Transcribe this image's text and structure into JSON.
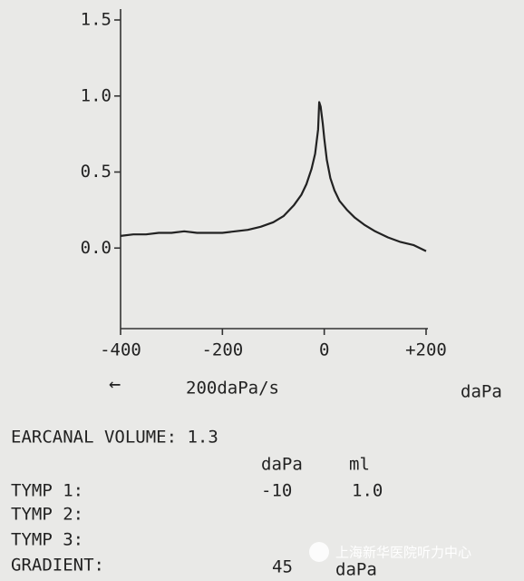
{
  "chart_data": {
    "type": "line",
    "x": [
      -400,
      -375,
      -350,
      -325,
      -300,
      -275,
      -250,
      -225,
      -200,
      -175,
      -150,
      -125,
      -100,
      -80,
      -60,
      -45,
      -35,
      -25,
      -18,
      -12,
      -10,
      -7,
      -3,
      0,
      5,
      12,
      20,
      30,
      45,
      60,
      80,
      100,
      125,
      150,
      175,
      200
    ],
    "values": [
      0.08,
      0.09,
      0.09,
      0.1,
      0.1,
      0.11,
      0.1,
      0.1,
      0.1,
      0.11,
      0.12,
      0.14,
      0.17,
      0.21,
      0.28,
      0.35,
      0.42,
      0.52,
      0.62,
      0.78,
      0.96,
      0.93,
      0.82,
      0.72,
      0.58,
      0.46,
      0.38,
      0.31,
      0.25,
      0.2,
      0.15,
      0.11,
      0.07,
      0.04,
      0.02,
      -0.02
    ],
    "color": "#222222",
    "xlim": [
      -400,
      200
    ],
    "xticks": [
      -400,
      -200,
      0,
      {
        "value": 200,
        "label": "+200"
      }
    ],
    "ylim": [
      -0.5,
      1.5
    ],
    "yticks": [
      1.5,
      {
        "value": 1,
        "label": "1.0"
      },
      0.5,
      {
        "value": 0,
        "label": "0.0"
      }
    ],
    "xlabel": "daPa",
    "annotations": [
      "←",
      "200daPa/s"
    ]
  },
  "report": {
    "volume": "EARCANAL VOLUME: 1.3",
    "columns": [
      "daPa",
      "ml"
    ],
    "rows": [
      [
        "TYMP 1:",
        "-10",
        "1.0"
      ],
      [
        "TYMP 2:"
      ],
      [
        "TYMP 3:"
      ],
      [
        "GRADIENT:",
        "45",
        "daPa"
      ]
    ]
  },
  "watermark": "上海新华医院听力中心"
}
